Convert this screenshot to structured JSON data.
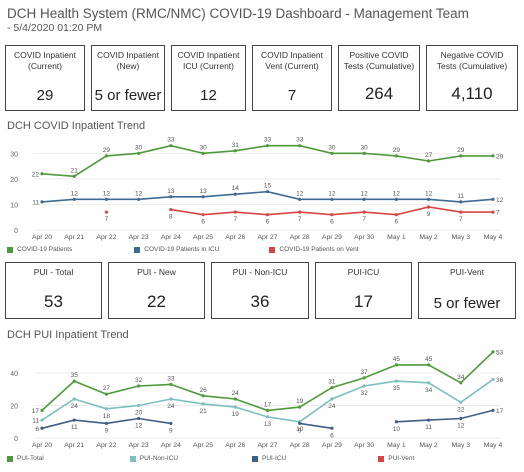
{
  "header": {
    "title": "DCH Health System (RMC/NMC) COVID-19 Dashboard - Management Team",
    "subtitle": "- 5/4/2020 01:20 PM"
  },
  "kpis_top": [
    {
      "label": "COVID Inpatient\n(Current)",
      "value": "29"
    },
    {
      "label": "COVID Inpatient\n(New)",
      "value": "5 or fewer"
    },
    {
      "label": "COVID Inpatient\nICU (Current)",
      "value": "12"
    },
    {
      "label": "COVID Inpatient\nVent (Current)",
      "value": "7"
    },
    {
      "label": "Positive COVID\nTests (Cumulative)",
      "value": "264"
    },
    {
      "label": "Negative COVID\nTests (Cumulative)",
      "value": "4,110"
    }
  ],
  "covid_trend": {
    "title": "DCH COVID Inpatient Trend",
    "legend": [
      "COVID-19 Patients",
      "COVID-19 Patients in ICU",
      "COVID-19 Patients on Vent"
    ]
  },
  "kpis_pui": [
    {
      "label": "PUI - Total",
      "value": "53"
    },
    {
      "label": "PUI - New",
      "value": "22"
    },
    {
      "label": "PUI - Non-ICU",
      "value": "36"
    },
    {
      "label": "PUI-ICU",
      "value": "17"
    },
    {
      "label": "PUI-Vent",
      "value": "5 or fewer"
    }
  ],
  "pui_trend": {
    "title": "DCH PUI Inpatient Trend",
    "legend": [
      "PUI-Total",
      "PUI-Non-ICU",
      "PUI-ICU",
      "PUI-Vent"
    ]
  },
  "colors": {
    "green": "#4e9a3a",
    "blue": "#3e6b93",
    "red": "#d64541",
    "teal": "#7bbfbf",
    "darkblue": "#3f5f86"
  },
  "chart_data": [
    {
      "type": "line",
      "title": "DCH COVID Inpatient Trend",
      "x": [
        "Apr 20",
        "Apr 21",
        "Apr 22",
        "Apr 23",
        "Apr 24",
        "Apr 25",
        "Apr 26",
        "Apr 27",
        "Apr 28",
        "Apr 29",
        "Apr 30",
        "May 1",
        "May 2",
        "May 3",
        "May 4"
      ],
      "yticks": [
        0,
        10,
        20,
        30
      ],
      "ylim": [
        0,
        36
      ],
      "series": [
        {
          "name": "COVID-19 Patients",
          "color": "#4e9a3a",
          "values": [
            22,
            21,
            29,
            30,
            33,
            30,
            31,
            33,
            33,
            30,
            30,
            29,
            27,
            29,
            29
          ]
        },
        {
          "name": "COVID-19 Patients in ICU",
          "color": "#3e6b93",
          "values": [
            11,
            12,
            12,
            12,
            13,
            13,
            14,
            15,
            12,
            12,
            12,
            12,
            12,
            11,
            12
          ]
        },
        {
          "name": "COVID-19 Patients on Vent",
          "color": "#d64541",
          "values": [
            null,
            null,
            7,
            null,
            8,
            6,
            7,
            6,
            7,
            6,
            7,
            6,
            9,
            7,
            7
          ]
        }
      ]
    },
    {
      "type": "line",
      "title": "DCH PUI Inpatient Trend",
      "x": [
        "Apr 20",
        "Apr 21",
        "Apr 22",
        "Apr 23",
        "Apr 24",
        "Apr 25",
        "Apr 26",
        "Apr 27",
        "Apr 28",
        "Apr 29",
        "Apr 30",
        "May 1",
        "May 2",
        "May 3",
        "May 4"
      ],
      "yticks": [
        0,
        20,
        40
      ],
      "ylim": [
        0,
        56
      ],
      "series": [
        {
          "name": "PUI-Total",
          "color": "#4e9a3a",
          "values": [
            17,
            35,
            27,
            32,
            33,
            26,
            24,
            17,
            19,
            31,
            37,
            45,
            45,
            34,
            53
          ]
        },
        {
          "name": "PUI-Non-ICU",
          "color": "#7bbfbf",
          "values": [
            11,
            24,
            18,
            20,
            24,
            21,
            19,
            13,
            10,
            24,
            32,
            35,
            34,
            22,
            36
          ]
        },
        {
          "name": "PUI-ICU",
          "color": "#3f5f86",
          "values": [
            6,
            11,
            9,
            12,
            9,
            null,
            null,
            null,
            9,
            6,
            null,
            10,
            11,
            12,
            17
          ]
        },
        {
          "name": "PUI-Vent",
          "color": "#d64541",
          "values": [
            null,
            null,
            null,
            null,
            null,
            null,
            null,
            null,
            null,
            null,
            null,
            null,
            null,
            null,
            null
          ]
        }
      ]
    }
  ]
}
